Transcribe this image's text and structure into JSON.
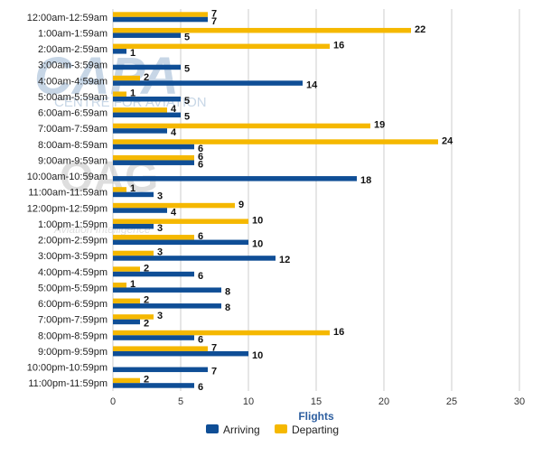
{
  "chart_data": {
    "type": "bar",
    "orientation": "horizontal",
    "categories": [
      "12:00am-12:59am",
      "1:00am-1:59am",
      "2:00am-2:59am",
      "3:00am-3:59am",
      "4:00am-4:59am",
      "5:00am-5:59am",
      "6:00am-6:59am",
      "7:00am-7:59am",
      "8:00am-8:59am",
      "9:00am-9:59am",
      "10:00am-10:59am",
      "11:00am-11:59am",
      "12:00pm-12:59pm",
      "1:00pm-1:59pm",
      "2:00pm-2:59pm",
      "3:00pm-3:59pm",
      "4:00pm-4:59pm",
      "5:00pm-5:59pm",
      "6:00pm-6:59pm",
      "7:00pm-7:59pm",
      "8:00pm-8:59pm",
      "9:00pm-9:59pm",
      "10:00pm-10:59pm",
      "11:00pm-11:59pm"
    ],
    "series": [
      {
        "name": "Departing",
        "color": "#f5b800",
        "values": [
          7,
          22,
          16,
          0,
          2,
          1,
          4,
          19,
          24,
          6,
          0,
          1,
          9,
          10,
          6,
          3,
          2,
          1,
          2,
          3,
          16,
          7,
          0,
          2
        ]
      },
      {
        "name": "Arriving",
        "color": "#0f4e96",
        "values": [
          7,
          5,
          1,
          5,
          14,
          5,
          5,
          4,
          6,
          6,
          18,
          3,
          4,
          3,
          10,
          12,
          6,
          8,
          8,
          2,
          6,
          10,
          7,
          6
        ]
      }
    ],
    "xlabel": "Flights",
    "xlim": [
      0,
      30
    ],
    "xticks": [
      0,
      5,
      10,
      15,
      20,
      25,
      30
    ],
    "grid": true,
    "legend_position": "bottom"
  },
  "watermark": {
    "capa_logo": "CAPA",
    "capa_tagline": "CENTRE FOR AVIATION",
    "oag_logo": "OAG",
    "oag_tagline": "Aviation Intelligence"
  },
  "colors": {
    "axis_title": "#2e5fa0",
    "gridline": "#cccccc"
  }
}
